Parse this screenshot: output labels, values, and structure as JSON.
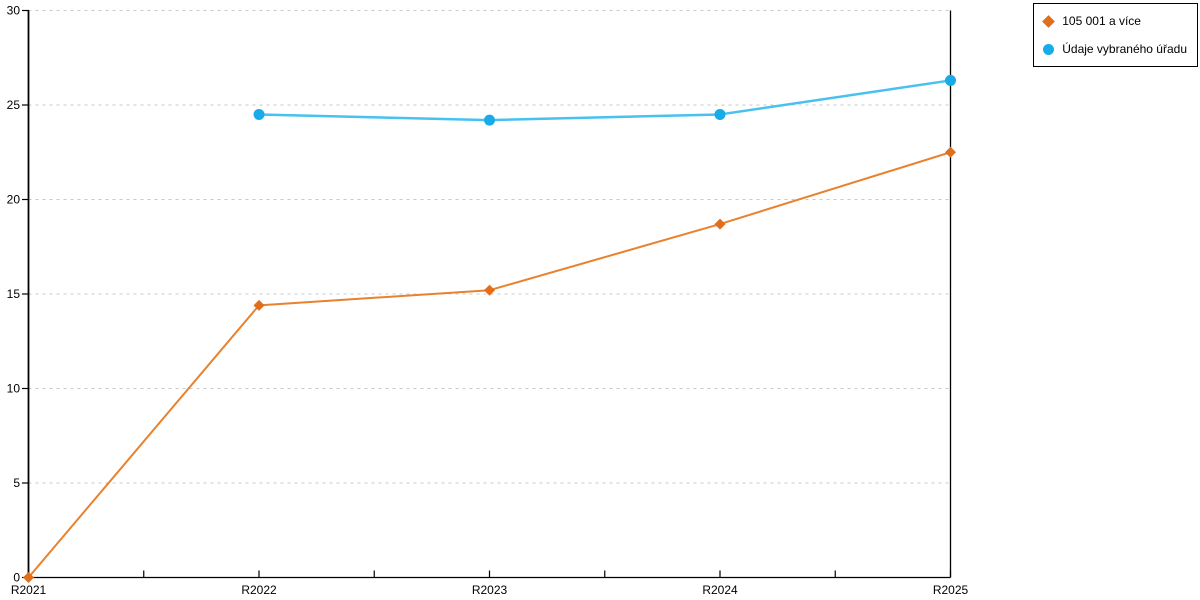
{
  "chart_data": {
    "type": "line",
    "title": "",
    "xlabel": "",
    "ylabel": "",
    "categories": [
      "R2021",
      "R2022",
      "R2023",
      "R2024",
      "R2025"
    ],
    "series": [
      {
        "name": "105 001 a více",
        "values": [
          0,
          14.4,
          15.2,
          18.7,
          22.5
        ],
        "line_color": "#e8822e",
        "marker_color": "#e06e1a",
        "marker": "diamond",
        "line_width": 2
      },
      {
        "name": "Údaje vybraného úřadu",
        "values": [
          null,
          24.5,
          24.2,
          24.5,
          26.3
        ],
        "line_color": "#47c1f0",
        "marker_color": "#17abe7",
        "marker": "circle",
        "line_width": 2.5
      }
    ],
    "ylim": [
      0,
      30
    ],
    "yticks": [
      0,
      5,
      10,
      15,
      20,
      25,
      30
    ],
    "grid": "horizontal-dashed",
    "grid_color": "#c9c9c9",
    "axis_color": "#000000",
    "legend_position": "top-right"
  }
}
